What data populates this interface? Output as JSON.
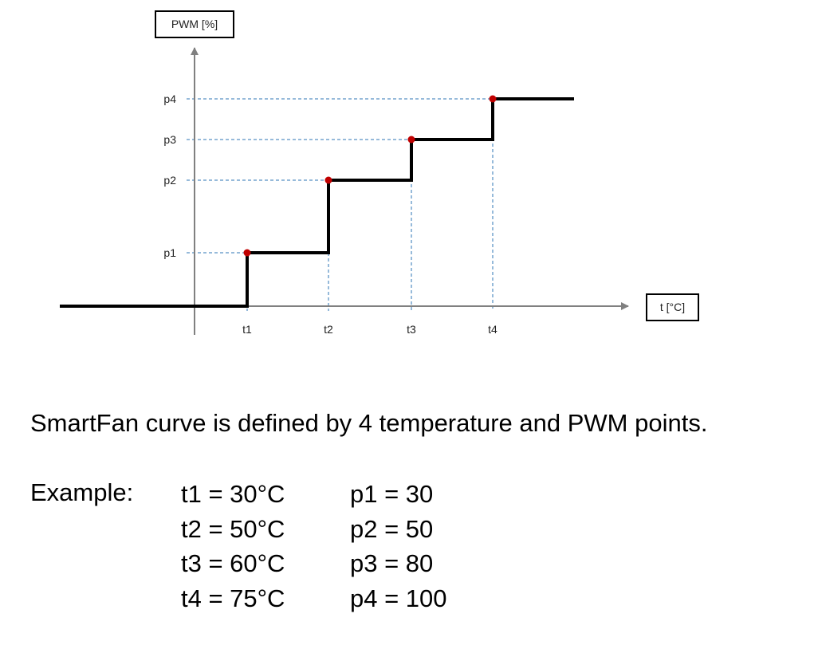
{
  "chart_data": {
    "type": "line",
    "xlabel": "t [°C]",
    "ylabel": "PWM [%]",
    "x_ticks": [
      "t1",
      "t2",
      "t3",
      "t4"
    ],
    "y_ticks": [
      "p1",
      "p2",
      "p3",
      "p4"
    ],
    "points": [
      {
        "x": "t1",
        "y": "p1"
      },
      {
        "x": "t2",
        "y": "p2"
      },
      {
        "x": "t3",
        "y": "p3"
      },
      {
        "x": "t4",
        "y": "p4"
      }
    ],
    "curve": "step",
    "colors": {
      "curve": "#000000",
      "points": "#c00000",
      "guides": "#2e75b6",
      "axes": "#808080"
    }
  },
  "caption": "SmartFan curve is defined by 4 temperature and PWM points.",
  "example": {
    "label": "Example:",
    "rows": [
      {
        "t": "t1 = 30°C",
        "p": "p1 = 30"
      },
      {
        "t": "t2 = 50°C",
        "p": "p2 = 50"
      },
      {
        "t": "t3 = 60°C",
        "p": "p3 = 80"
      },
      {
        "t": "t4 = 75°C",
        "p": "p4 = 100"
      }
    ]
  }
}
